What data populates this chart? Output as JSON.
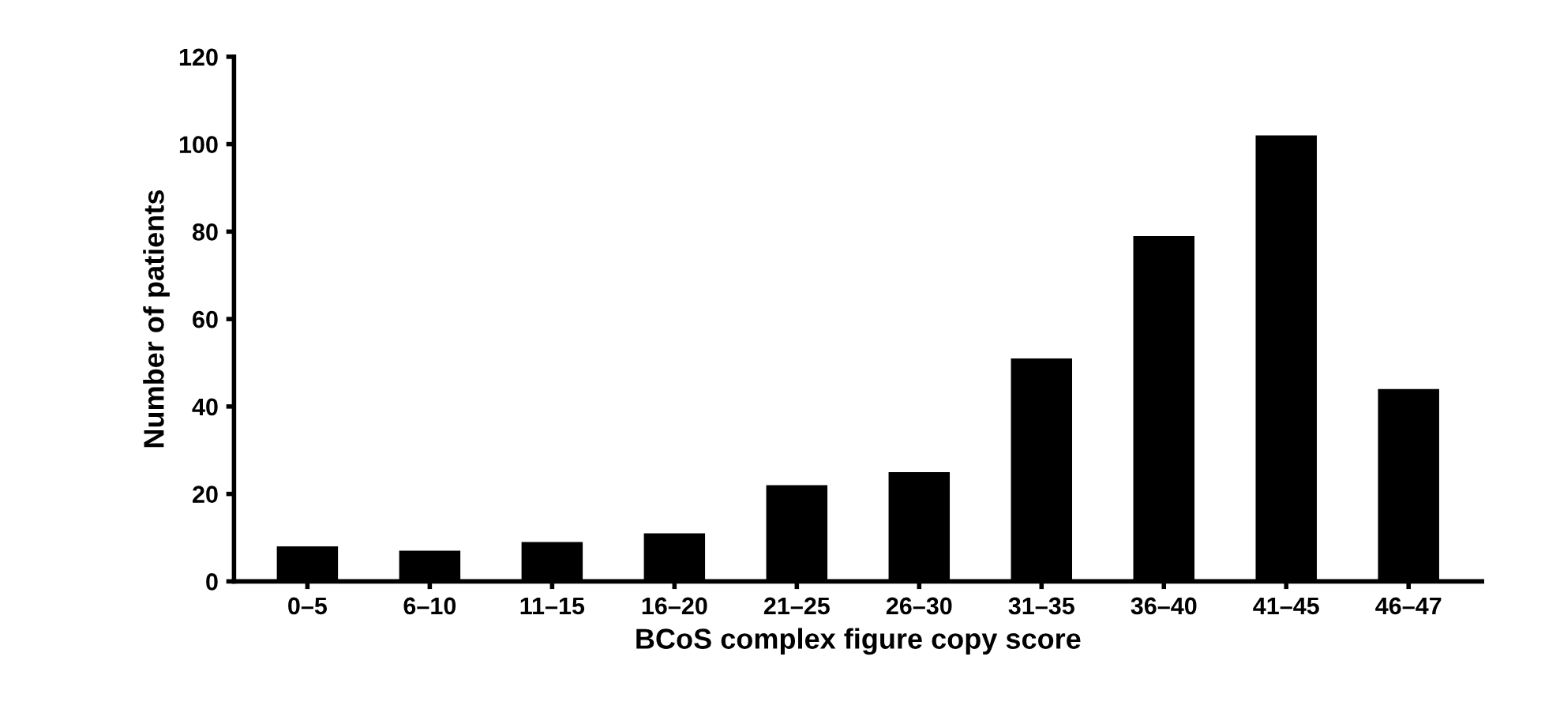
{
  "chart_data": {
    "type": "bar",
    "xlabel": "BCoS complex figure copy score",
    "ylabel": "Number of patients",
    "categories": [
      "0–5",
      "6–10",
      "11–15",
      "16–20",
      "21–25",
      "26–30",
      "31–35",
      "36–40",
      "41–45",
      "46–47"
    ],
    "values": [
      8,
      7,
      9,
      11,
      22,
      25,
      51,
      79,
      102,
      44
    ],
    "color": "#000000",
    "ylim": [
      0,
      120
    ],
    "yticks": [
      0,
      20,
      40,
      60,
      80,
      100,
      120
    ],
    "grid": false
  }
}
